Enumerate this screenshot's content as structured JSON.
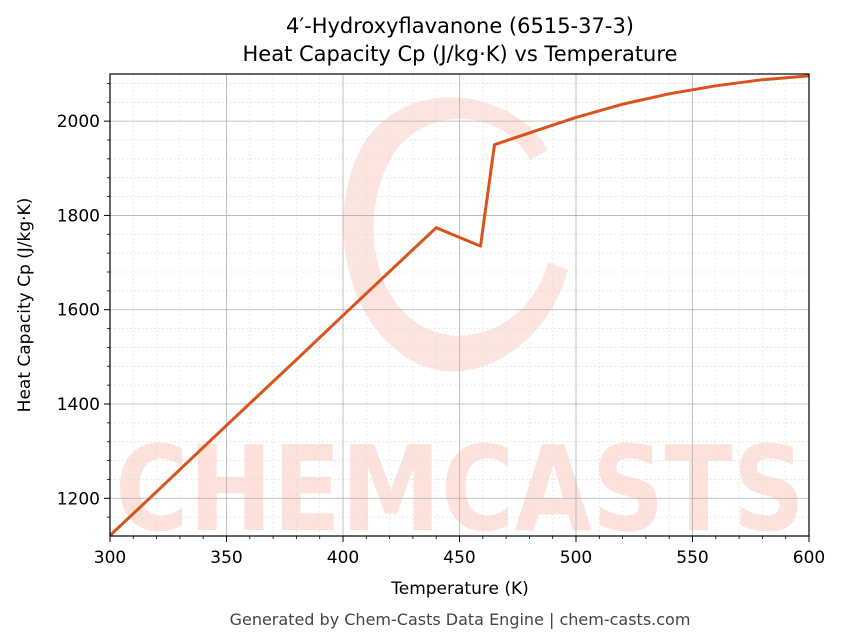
{
  "chart_data": {
    "type": "line",
    "title": "4′-Hydroxyflavanone (6515-37-3)",
    "subtitle": "Heat Capacity Cp (J/kg·K) vs Temperature",
    "xlabel": "Temperature (K)",
    "ylabel": "Heat Capacity Cp (J/kg·K)",
    "xlim": [
      300,
      600
    ],
    "ylim": [
      1120,
      2100
    ],
    "x_ticks": [
      300,
      350,
      400,
      450,
      500,
      550,
      600
    ],
    "y_ticks": [
      1200,
      1400,
      1600,
      1800,
      2000
    ],
    "grid": true,
    "line_color": "#d9531e",
    "series": [
      {
        "x": [
          300,
          320,
          340,
          360,
          380,
          400,
          420,
          440,
          459,
          465,
          480,
          500,
          520,
          540,
          560,
          580,
          600
        ],
        "values": [
          1121,
          1214,
          1308,
          1401,
          1494,
          1588,
          1681,
          1774,
          1735,
          1950,
          1975,
          2008,
          2036,
          2058,
          2075,
          2088,
          2096
        ]
      }
    ]
  },
  "watermark": {
    "text": "CHEMCASTS",
    "color": "#fde2dc"
  },
  "footer": {
    "text": "Generated by Chem-Casts Data Engine | chem-casts.com"
  }
}
